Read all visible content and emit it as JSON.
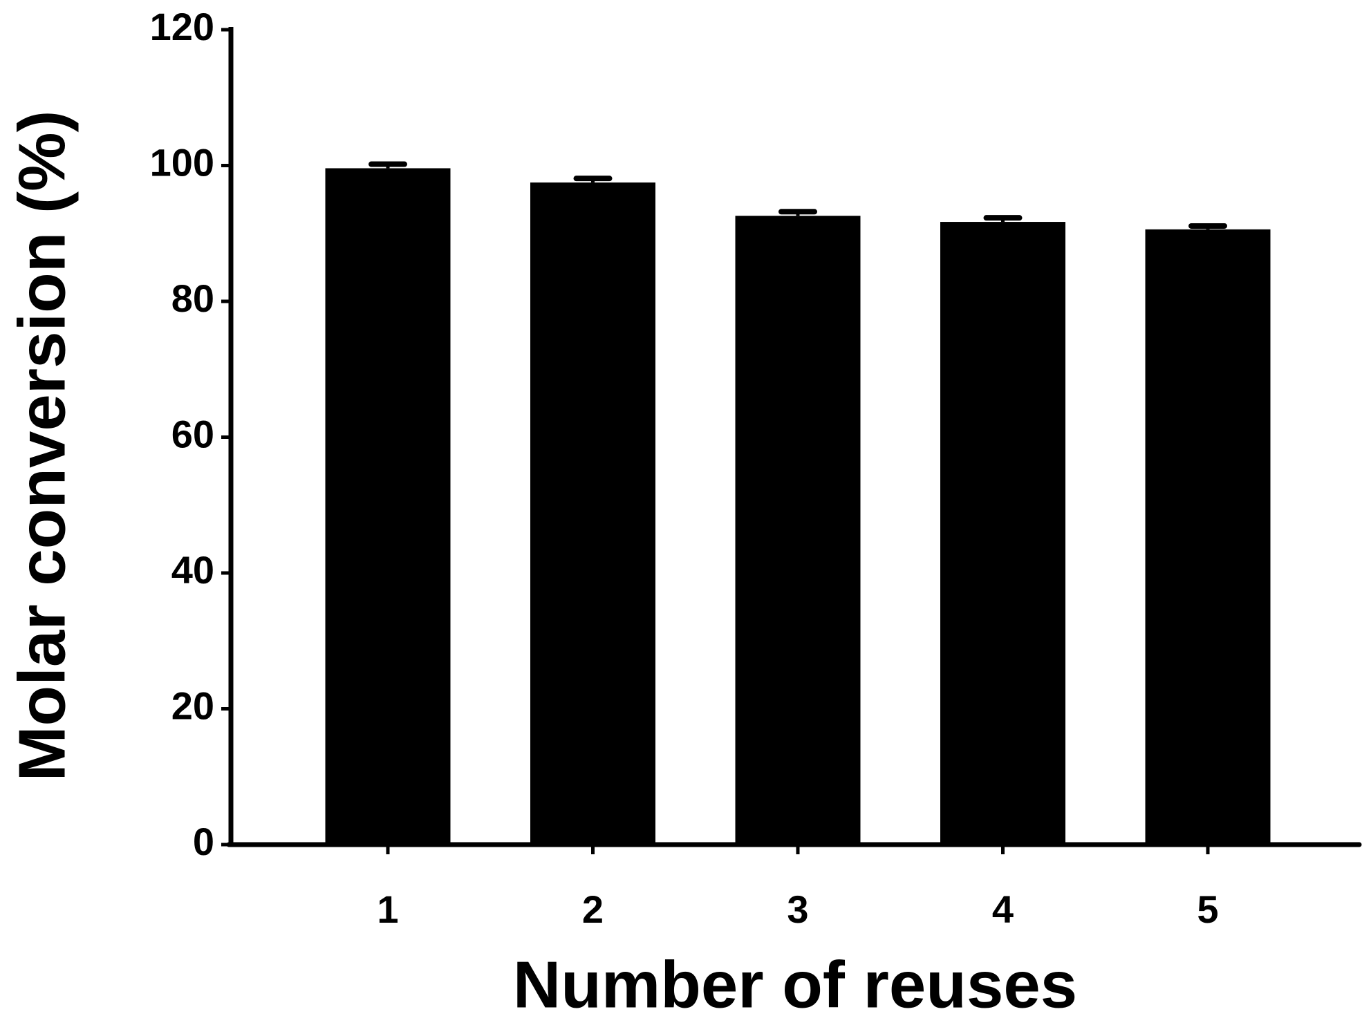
{
  "chart_data": {
    "type": "bar",
    "x_label": "Number of reuses",
    "y_label": "Molar conversion (%)",
    "categories": [
      "1",
      "2",
      "3",
      "4",
      "5"
    ],
    "values": [
      99.6,
      97.5,
      92.6,
      91.7,
      90.6
    ],
    "errors": [
      0.6,
      0.6,
      0.6,
      0.6,
      0.5
    ],
    "color": "#000000",
    "ylim": [
      0,
      120
    ],
    "yticks": [
      0,
      20,
      40,
      60,
      80,
      100,
      120
    ],
    "grid": false
  }
}
